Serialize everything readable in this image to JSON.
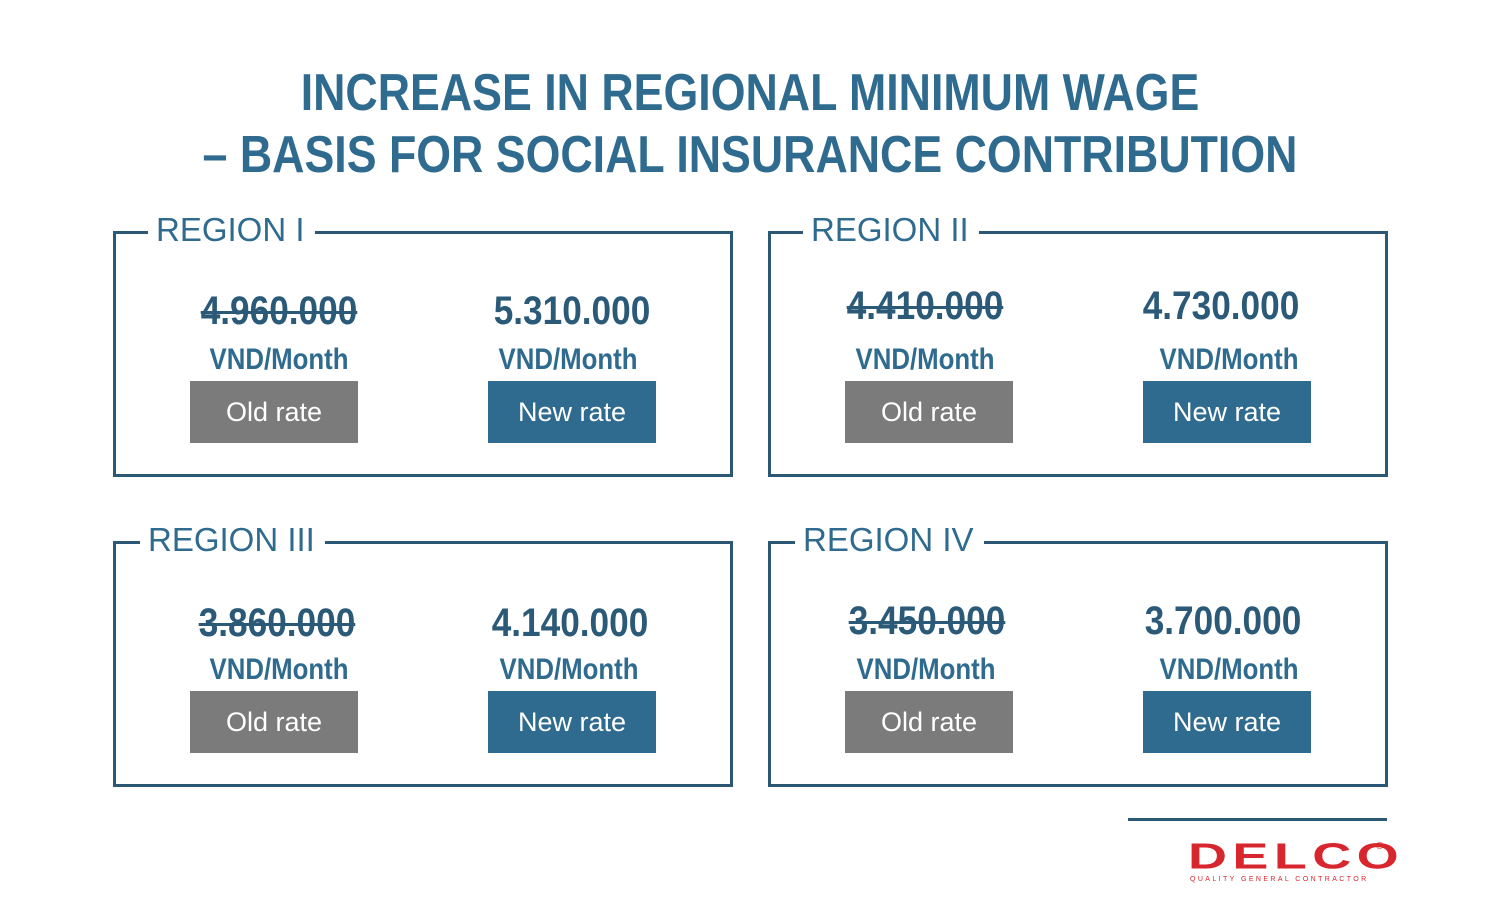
{
  "title": {
    "line1": "INCREASE IN REGIONAL MINIMUM WAGE",
    "line2": "– BASIS FOR SOCIAL INSURANCE CONTRIBUTION"
  },
  "regions": [
    {
      "label": "REGION I",
      "old_amount": "4.960.000",
      "new_amount": "5.310.000",
      "unit": "VND/Month",
      "old_label": "Old rate",
      "new_label": "New rate"
    },
    {
      "label": "REGION II",
      "old_amount": "4.410.000",
      "new_amount": "4.730.000",
      "unit": "VND/Month",
      "old_label": "Old rate",
      "new_label": "New rate"
    },
    {
      "label": "REGION III",
      "old_amount": "3.860.000",
      "new_amount": "4.140.000",
      "unit": "VND/Month",
      "old_label": "Old rate",
      "new_label": "New rate"
    },
    {
      "label": "REGION IV",
      "old_amount": "3.450.000",
      "new_amount": "3.700.000",
      "unit": "VND/Month",
      "old_label": "Old rate",
      "new_label": "New rate"
    }
  ],
  "logo": {
    "name": "DELCO",
    "registered": "®",
    "tagline": "QUALITY GENERAL CONTRACTOR"
  },
  "colors": {
    "primary": "#2f6b8f",
    "border": "#2b5875",
    "old_button": "#7b7b7b",
    "logo": "#d7262d"
  }
}
